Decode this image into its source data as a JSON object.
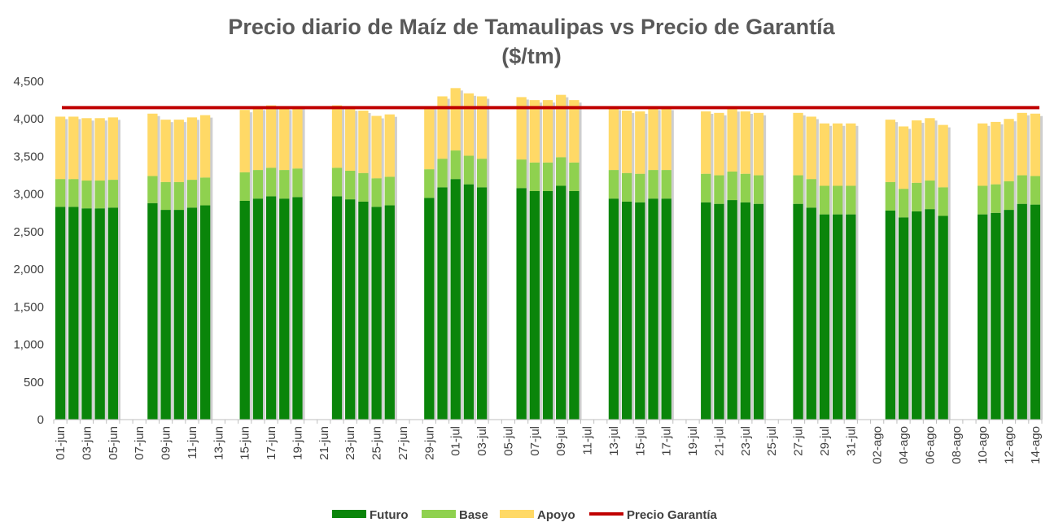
{
  "chart_data": {
    "type": "bar",
    "stacked": true,
    "title": "Precio diario de Maíz de Tamaulipas vs Precio de Garantía",
    "subtitle": "($/tm)",
    "xlabel": "",
    "ylabel": "",
    "ylim": [
      0,
      4500
    ],
    "yticks": [
      0,
      500,
      1000,
      1500,
      2000,
      2500,
      3000,
      3500,
      4000,
      4500
    ],
    "ytick_labels": [
      "0",
      "500",
      "1,000",
      "1,500",
      "2,000",
      "2,500",
      "3,000",
      "3,500",
      "4,000",
      "4,500"
    ],
    "grid": false,
    "legend_position": "bottom",
    "colors": {
      "futuro": "#0a850a",
      "base": "#8fd14f",
      "apoyo": "#ffd966",
      "garantia": "#c00000",
      "shadow": "#a6a6a6",
      "axis": "#bfbfbf"
    },
    "categories": [
      "01-jun",
      "02-jun",
      "03-jun",
      "04-jun",
      "05-jun",
      "06-jun",
      "07-jun",
      "08-jun",
      "09-jun",
      "10-jun",
      "11-jun",
      "12-jun",
      "13-jun",
      "14-jun",
      "15-jun",
      "16-jun",
      "17-jun",
      "18-jun",
      "19-jun",
      "20-jun",
      "21-jun",
      "22-jun",
      "23-jun",
      "24-jun",
      "25-jun",
      "26-jun",
      "27-jun",
      "28-jun",
      "29-jun",
      "30-jun",
      "01-jul",
      "02-jul",
      "03-jul",
      "04-jul",
      "05-jul",
      "06-jul",
      "07-jul",
      "08-jul",
      "09-jul",
      "10-jul",
      "11-jul",
      "12-jul",
      "13-jul",
      "14-jul",
      "15-jul",
      "16-jul",
      "17-jul",
      "18-jul",
      "19-jul",
      "20-jul",
      "21-jul",
      "22-jul",
      "23-jul",
      "24-jul",
      "25-jul",
      "26-jul",
      "27-jul",
      "28-jul",
      "29-jul",
      "30-jul",
      "31-jul",
      "01-ago",
      "02-ago",
      "03-ago",
      "04-ago",
      "05-ago",
      "06-ago",
      "07-ago",
      "08-ago",
      "09-ago",
      "10-ago",
      "11-ago",
      "12-ago",
      "13-ago",
      "14-ago"
    ],
    "xtick_labels": [
      "01-jun",
      "03-jun",
      "05-jun",
      "07-jun",
      "09-jun",
      "11-jun",
      "13-jun",
      "15-jun",
      "17-jun",
      "19-jun",
      "21-jun",
      "23-jun",
      "25-jun",
      "27-jun",
      "29-jun",
      "01-jul",
      "03-jul",
      "05-jul",
      "07-jul",
      "09-jul",
      "11-jul",
      "13-jul",
      "15-jul",
      "17-jul",
      "19-jul",
      "21-jul",
      "23-jul",
      "25-jul",
      "27-jul",
      "29-jul",
      "31-jul",
      "02-ago",
      "04-ago",
      "06-ago",
      "08-ago",
      "10-ago",
      "12-ago",
      "14-ago"
    ],
    "series": [
      {
        "name": "Futuro",
        "values": [
          2830,
          2830,
          2810,
          2810,
          2820,
          null,
          null,
          2880,
          2790,
          2790,
          2820,
          2850,
          null,
          null,
          2910,
          2940,
          2970,
          2940,
          2960,
          null,
          null,
          2970,
          2930,
          2900,
          2830,
          2850,
          null,
          null,
          2950,
          3090,
          3200,
          3130,
          3090,
          null,
          null,
          3080,
          3040,
          3040,
          3110,
          3040,
          null,
          null,
          2940,
          2900,
          2890,
          2940,
          2940,
          null,
          null,
          2890,
          2870,
          2920,
          2890,
          2870,
          null,
          null,
          2870,
          2820,
          2730,
          2730,
          2730,
          null,
          null,
          2780,
          2690,
          2770,
          2800,
          2710,
          null,
          null,
          2730,
          2750,
          2790,
          2870,
          2860
        ]
      },
      {
        "name": "Base",
        "values": [
          370,
          370,
          370,
          370,
          370,
          null,
          null,
          360,
          370,
          370,
          370,
          370,
          null,
          null,
          380,
          380,
          380,
          380,
          380,
          null,
          null,
          380,
          380,
          380,
          380,
          380,
          null,
          null,
          380,
          380,
          380,
          380,
          380,
          null,
          null,
          380,
          380,
          380,
          380,
          380,
          null,
          null,
          380,
          380,
          380,
          380,
          380,
          null,
          null,
          380,
          380,
          380,
          380,
          380,
          null,
          null,
          380,
          380,
          380,
          380,
          380,
          null,
          null,
          380,
          380,
          380,
          380,
          380,
          null,
          null,
          380,
          380,
          380,
          380,
          380
        ]
      },
      {
        "name": "Apoyo",
        "values": [
          830,
          830,
          830,
          830,
          830,
          null,
          null,
          830,
          830,
          830,
          830,
          830,
          null,
          null,
          830,
          830,
          830,
          830,
          830,
          null,
          null,
          830,
          830,
          830,
          830,
          830,
          null,
          null,
          830,
          830,
          830,
          830,
          830,
          null,
          null,
          830,
          830,
          830,
          830,
          830,
          null,
          null,
          830,
          830,
          830,
          830,
          830,
          null,
          null,
          830,
          830,
          830,
          830,
          830,
          null,
          null,
          830,
          830,
          830,
          830,
          830,
          null,
          null,
          830,
          830,
          830,
          830,
          830,
          null,
          null,
          830,
          830,
          830,
          830,
          830
        ]
      },
      {
        "name": "Precio Garantía",
        "type": "line",
        "value": 4150
      }
    ]
  }
}
